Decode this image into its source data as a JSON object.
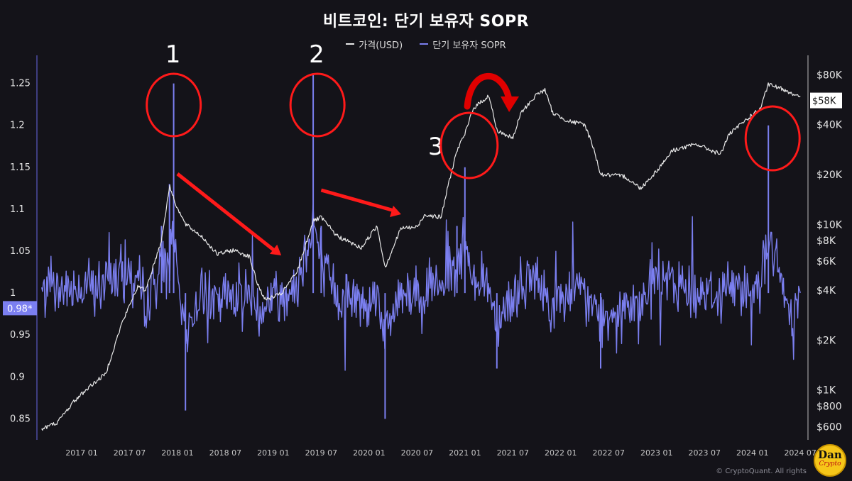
{
  "title": "비트코인: 단기 보유자 SOPR",
  "legend": [
    {
      "label": "가격(USD)",
      "color": "#e8e8e8"
    },
    {
      "label": "단기 보유자 SOPR",
      "color": "#7b7ff0"
    }
  ],
  "footer": "© CryptoQuant. All rights",
  "badge": {
    "line1": "Dan",
    "line2": "Crypto"
  },
  "chart_data": {
    "type": "line",
    "x_tick_labels": [
      "2017 01",
      "2017 07",
      "2018 01",
      "2018 07",
      "2019 01",
      "2019 07",
      "2020 01",
      "2020 07",
      "2021 01",
      "2021 07",
      "2022 01",
      "2022 07",
      "2023 01",
      "2023 07",
      "2024 01",
      "2024 07"
    ],
    "left_axis": {
      "ticks": [
        0.85,
        0.9,
        0.95,
        1,
        1.05,
        1.1,
        1.15,
        1.2,
        1.25
      ],
      "ylim": [
        0.825,
        1.275
      ],
      "current_label": "0.98*"
    },
    "right_axis": {
      "scale": "log",
      "ticks": [
        "$600",
        "$800",
        "$1K",
        "$2K",
        "$4K",
        "$6K",
        "$8K",
        "$10K",
        "$20K",
        "$40K",
        "$80K"
      ],
      "tick_values": [
        600,
        800,
        1000,
        2000,
        4000,
        6000,
        8000,
        10000,
        20000,
        40000,
        80000
      ],
      "ylim": [
        500,
        95000
      ],
      "current_label": "$58K"
    },
    "series": [
      {
        "name": "가격(USD)",
        "axis": "right",
        "color": "#e8e8e8",
        "points": [
          [
            "2016-08",
            580
          ],
          [
            "2016-10",
            640
          ],
          [
            "2016-12",
            850
          ],
          [
            "2017-02",
            1050
          ],
          [
            "2017-04",
            1250
          ],
          [
            "2017-06",
            2500
          ],
          [
            "2017-08",
            4200
          ],
          [
            "2017-09",
            4000
          ],
          [
            "2017-11",
            8000
          ],
          [
            "2017-12",
            17000
          ],
          [
            "2018-01",
            12500
          ],
          [
            "2018-02",
            10000
          ],
          [
            "2018-04",
            8500
          ],
          [
            "2018-06",
            6600
          ],
          [
            "2018-08",
            7000
          ],
          [
            "2018-10",
            6400
          ],
          [
            "2018-11",
            4400
          ],
          [
            "2018-12",
            3500
          ],
          [
            "2019-02",
            3800
          ],
          [
            "2019-04",
            5200
          ],
          [
            "2019-06",
            10500
          ],
          [
            "2019-07",
            11000
          ],
          [
            "2019-09",
            8500
          ],
          [
            "2019-12",
            7200
          ],
          [
            "2020-02",
            9800
          ],
          [
            "2020-03",
            5500
          ],
          [
            "2020-05",
            9500
          ],
          [
            "2020-07",
            9600
          ],
          [
            "2020-08",
            11500
          ],
          [
            "2020-10",
            11000
          ],
          [
            "2020-11",
            18000
          ],
          [
            "2020-12",
            28000
          ],
          [
            "2021-01",
            35000
          ],
          [
            "2021-02",
            50000
          ],
          [
            "2021-04",
            60000
          ],
          [
            "2021-05",
            37000
          ],
          [
            "2021-07",
            33000
          ],
          [
            "2021-08",
            47000
          ],
          [
            "2021-10",
            61000
          ],
          [
            "2021-11",
            65000
          ],
          [
            "2021-12",
            47000
          ],
          [
            "2022-02",
            42000
          ],
          [
            "2022-04",
            40000
          ],
          [
            "2022-05",
            30000
          ],
          [
            "2022-06",
            20000
          ],
          [
            "2022-09",
            19500
          ],
          [
            "2022-11",
            16500
          ],
          [
            "2023-01",
            21000
          ],
          [
            "2023-03",
            28000
          ],
          [
            "2023-06",
            30500
          ],
          [
            "2023-09",
            26500
          ],
          [
            "2023-10",
            34500
          ],
          [
            "2023-12",
            42000
          ],
          [
            "2024-02",
            50000
          ],
          [
            "2024-03",
            70000
          ],
          [
            "2024-05",
            65000
          ],
          [
            "2024-06",
            62000
          ],
          [
            "2024-07",
            58000
          ]
        ]
      },
      {
        "name": "단기 보유자 SOPR",
        "axis": "left",
        "color": "#7b7ff0",
        "points": [
          [
            "2016-08",
            1.0
          ],
          [
            "2016-10",
            1.01
          ],
          [
            "2016-12",
            1.02
          ],
          [
            "2017-02",
            1.03
          ],
          [
            "2017-04",
            1.02
          ],
          [
            "2017-06",
            1.07
          ],
          [
            "2017-08",
            1.05
          ],
          [
            "2017-09",
            0.97
          ],
          [
            "2017-11",
            1.08
          ],
          [
            "2017-12",
            1.13
          ],
          [
            "2017-12-17",
            1.25
          ],
          [
            "2018-01",
            1.02
          ],
          [
            "2018-02",
            0.86
          ],
          [
            "2018-04",
            1.01
          ],
          [
            "2018-06",
            0.96
          ],
          [
            "2018-08",
            1.01
          ],
          [
            "2018-10",
            1.0
          ],
          [
            "2018-11",
            0.93
          ],
          [
            "2018-12",
            0.97
          ],
          [
            "2019-02",
            1.0
          ],
          [
            "2019-04",
            1.03
          ],
          [
            "2019-06",
            1.26
          ],
          [
            "2019-07",
            1.08
          ],
          [
            "2019-09",
            0.99
          ],
          [
            "2019-12",
            0.97
          ],
          [
            "2020-02",
            1.01
          ],
          [
            "2020-03",
            0.85
          ],
          [
            "2020-05",
            1.02
          ],
          [
            "2020-07",
            1.0
          ],
          [
            "2020-08",
            1.03
          ],
          [
            "2020-10",
            1.0
          ],
          [
            "2020-11",
            1.06
          ],
          [
            "2020-12",
            1.08
          ],
          [
            "2021-01",
            1.15
          ],
          [
            "2021-02",
            1.07
          ],
          [
            "2021-04",
            1.02
          ],
          [
            "2021-05",
            0.91
          ],
          [
            "2021-07",
            0.99
          ],
          [
            "2021-08",
            1.03
          ],
          [
            "2021-10",
            1.04
          ],
          [
            "2021-11",
            0.99
          ],
          [
            "2021-12",
            0.95
          ],
          [
            "2022-02",
            1.0
          ],
          [
            "2022-04",
            0.98
          ],
          [
            "2022-05",
            0.94
          ],
          [
            "2022-06",
            0.91
          ],
          [
            "2022-09",
            0.98
          ],
          [
            "2022-11",
            0.95
          ],
          [
            "2023-01",
            1.06
          ],
          [
            "2023-03",
            1.03
          ],
          [
            "2023-06",
            1.01
          ],
          [
            "2023-09",
            0.99
          ],
          [
            "2023-10",
            1.03
          ],
          [
            "2023-12",
            1.02
          ],
          [
            "2024-02",
            1.03
          ],
          [
            "2024-03",
            1.2
          ],
          [
            "2024-05",
            0.99
          ],
          [
            "2024-06",
            0.93
          ],
          [
            "2024-07",
            0.98
          ]
        ]
      }
    ],
    "annotations": [
      {
        "type": "number",
        "text": "1",
        "near": "2017-12"
      },
      {
        "type": "number",
        "text": "2",
        "near": "2019-06"
      },
      {
        "type": "number",
        "text": "3",
        "near": "2021-01"
      },
      {
        "type": "circle",
        "color": "#ff1a1a",
        "near": "2017-12"
      },
      {
        "type": "circle",
        "color": "#ff1a1a",
        "near": "2019-06"
      },
      {
        "type": "circle",
        "color": "#ff1a1a",
        "near": "2021-01"
      },
      {
        "type": "circle",
        "color": "#ff1a1a",
        "near": "2024-03"
      },
      {
        "type": "arrow",
        "color": "#ff1a1a",
        "from": "2018-01",
        "to": "2019-02"
      },
      {
        "type": "arrow",
        "color": "#ff1a1a",
        "from": "2019-07",
        "to": "2020-05"
      },
      {
        "type": "curved-arrow",
        "color": "#e00000",
        "from": "2021-02",
        "to": "2021-06"
      }
    ]
  }
}
